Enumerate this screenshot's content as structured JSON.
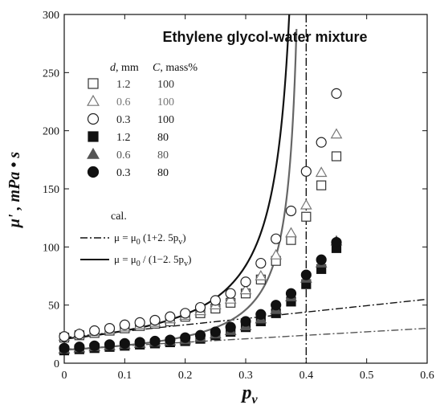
{
  "chart_data": {
    "type": "scatter",
    "title": "Ethylene glycol-water mixture",
    "xlabel": "p",
    "xlabel_subscript": "v",
    "ylabel": "μ' , mPa • s",
    "xlim": [
      0,
      0.6
    ],
    "ylim": [
      0,
      300
    ],
    "xticks": [
      0,
      0.1,
      0.2,
      0.3,
      0.4,
      0.5,
      0.6
    ],
    "xtick_labels": [
      "0",
      "0.1",
      "0.2",
      "0.3",
      "0.4",
      "0.5",
      "0.6"
    ],
    "yticks": [
      0,
      50,
      100,
      150,
      200,
      250,
      300
    ],
    "ytick_labels": [
      "0",
      "50",
      "100",
      "150",
      "200",
      "250",
      "300"
    ],
    "legend_header": {
      "d": "d",
      "d_unit": ", mm",
      "c": "C",
      "c_unit": ", mass%"
    },
    "series": [
      {
        "name": "1.2 100",
        "d": "1.2",
        "c": "100",
        "marker": "square-open",
        "color": "#333333",
        "x": [
          0.0,
          0.025,
          0.05,
          0.075,
          0.1,
          0.125,
          0.15,
          0.175,
          0.2,
          0.225,
          0.25,
          0.275,
          0.3,
          0.325,
          0.35,
          0.375,
          0.4,
          0.425,
          0.45
        ],
        "y": [
          22,
          24,
          26,
          28,
          30,
          32,
          34,
          36,
          40,
          43,
          47,
          52,
          60,
          72,
          88,
          106,
          126,
          153,
          178
        ]
      },
      {
        "name": "0.6 100",
        "d": "0.6",
        "c": "100",
        "marker": "triangle-open",
        "color": "#777777",
        "x": [
          0.0,
          0.025,
          0.05,
          0.075,
          0.1,
          0.125,
          0.15,
          0.175,
          0.2,
          0.225,
          0.25,
          0.275,
          0.3,
          0.325,
          0.35,
          0.375,
          0.4,
          0.425,
          0.45
        ],
        "y": [
          23,
          25,
          27,
          29,
          31,
          33,
          35,
          38,
          41,
          45,
          50,
          55,
          63,
          75,
          93,
          112,
          136,
          164,
          197
        ]
      },
      {
        "name": "0.3 100",
        "d": "0.3",
        "c": "100",
        "marker": "circle-open",
        "color": "#222222",
        "x": [
          0.0,
          0.025,
          0.05,
          0.075,
          0.1,
          0.125,
          0.15,
          0.175,
          0.2,
          0.225,
          0.25,
          0.275,
          0.3,
          0.325,
          0.35,
          0.375,
          0.4,
          0.425,
          0.45
        ],
        "y": [
          23,
          25,
          28,
          30,
          33,
          35,
          37,
          40,
          43,
          48,
          54,
          60,
          70,
          86,
          107,
          131,
          165,
          190,
          232
        ]
      },
      {
        "name": "1.2 80",
        "d": "1.2",
        "c": "80",
        "marker": "square-filled",
        "color": "#111111",
        "x": [
          0.0,
          0.025,
          0.05,
          0.075,
          0.1,
          0.125,
          0.15,
          0.175,
          0.2,
          0.225,
          0.25,
          0.275,
          0.3,
          0.325,
          0.35,
          0.375,
          0.4,
          0.425,
          0.45
        ],
        "y": [
          11,
          12,
          13,
          14,
          15,
          16,
          17,
          18,
          19,
          21,
          24,
          27,
          31,
          36,
          43,
          53,
          68,
          81,
          99
        ]
      },
      {
        "name": "0.6 80",
        "d": "0.6",
        "c": "80",
        "marker": "triangle-filled",
        "color": "#555555",
        "x": [
          0.0,
          0.025,
          0.05,
          0.075,
          0.1,
          0.125,
          0.15,
          0.175,
          0.2,
          0.225,
          0.25,
          0.275,
          0.3,
          0.325,
          0.35,
          0.375,
          0.4,
          0.425,
          0.45
        ],
        "y": [
          12,
          13,
          14,
          15,
          16,
          17,
          18,
          19,
          20,
          22,
          25,
          28,
          32,
          38,
          46,
          57,
          73,
          86,
          105
        ]
      },
      {
        "name": "0.3 80",
        "d": "0.3",
        "c": "80",
        "marker": "circle-filled",
        "color": "#111111",
        "x": [
          0.0,
          0.025,
          0.05,
          0.075,
          0.1,
          0.125,
          0.15,
          0.175,
          0.2,
          0.225,
          0.25,
          0.275,
          0.3,
          0.325,
          0.35,
          0.375,
          0.4,
          0.425,
          0.45
        ],
        "y": [
          13,
          14,
          15,
          16,
          17,
          18,
          19,
          20,
          22,
          24,
          27,
          31,
          36,
          42,
          50,
          60,
          76,
          89,
          104
        ]
      }
    ],
    "calc_label": "cal.",
    "calc_curves": [
      {
        "name": "μ = μ0 (1+2.5pv)",
        "label_main": "μ = μ",
        "label_sub": "0",
        "label_tail": " (1+2. 5p",
        "label_tail_sub": "v",
        "label_close": ")",
        "style": "dashdot",
        "color": "#111111"
      },
      {
        "name": "μ = μ0 /(1−2.5pv)",
        "label_main": "μ = μ",
        "label_sub": "0",
        "label_tail": " / (1−2. 5p",
        "label_tail_sub": "v",
        "label_close": ")",
        "style": "solid",
        "color": "#111111"
      }
    ],
    "vertical_line_x": 0.4,
    "legend_position": "top-left",
    "grid": false
  }
}
